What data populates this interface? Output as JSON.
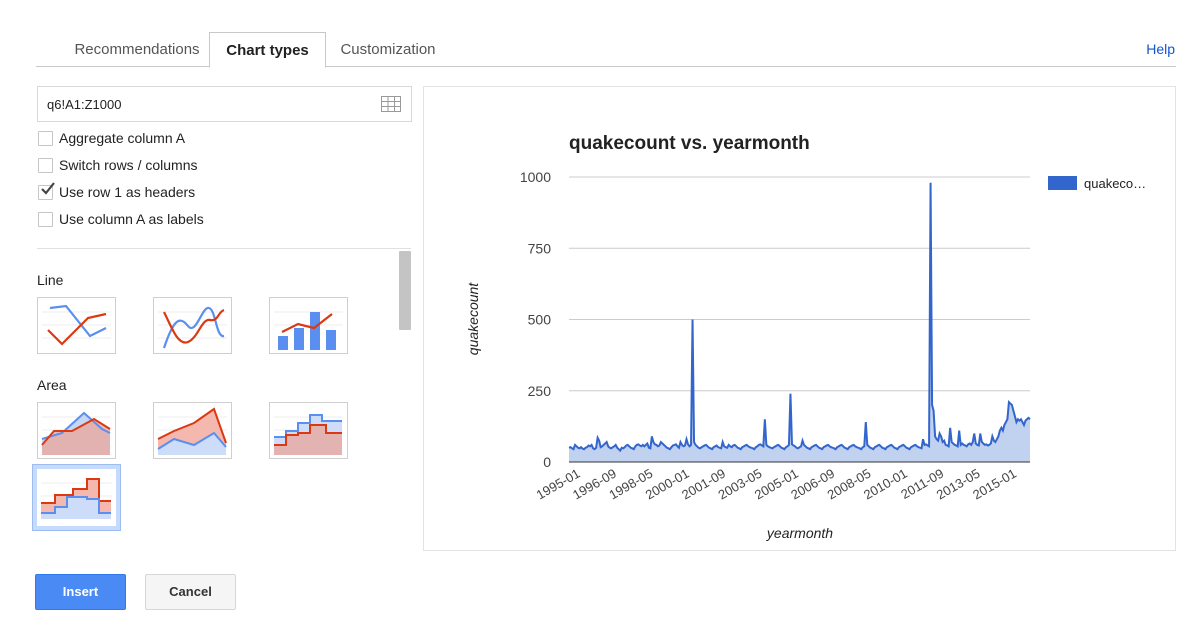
{
  "tabs": [
    {
      "label": "Recommendations",
      "active": false
    },
    {
      "label": "Chart types",
      "active": true
    },
    {
      "label": "Customization",
      "active": false
    }
  ],
  "help_label": "Help",
  "range_input": {
    "value": "q6!A1:Z1000",
    "icon": "grid-icon"
  },
  "options": [
    {
      "label": "Aggregate column A",
      "checked": false
    },
    {
      "label": "Switch rows / columns",
      "checked": false
    },
    {
      "label": "Use row 1 as headers",
      "checked": true
    },
    {
      "label": "Use column A as labels",
      "checked": false
    }
  ],
  "chart_types": {
    "line_label": "Line",
    "area_label": "Area",
    "line_thumbs": [
      "line-chart-icon",
      "smooth-line-chart-icon",
      "combo-chart-icon"
    ],
    "area_thumbs": [
      "area-chart-icon",
      "stacked-area-chart-icon",
      "stepped-area-chart-icon",
      "stepped-area-chart-selected-icon"
    ]
  },
  "buttons": {
    "insert": "Insert",
    "cancel": "Cancel"
  },
  "colors": {
    "accent": "#4a8af4",
    "series": "#3366cc",
    "red": "#dc3912",
    "link": "#1155cc"
  },
  "chart_data": {
    "type": "area",
    "title": "quakecount vs. yearmonth",
    "xlabel": "yearmonth",
    "ylabel": "quakecount",
    "ylim": [
      0,
      1000
    ],
    "yticks": [
      0,
      250,
      500,
      750,
      1000
    ],
    "xticks": [
      "1995-01",
      "1996-09",
      "1998-05",
      "2000-01",
      "2001-09",
      "2003-05",
      "2005-01",
      "2006-09",
      "2008-05",
      "2010-01",
      "2011-09",
      "2013-05",
      "2015-01"
    ],
    "legend": "quakeco…",
    "legend_position": "right",
    "grid": true,
    "series": [
      {
        "name": "quakecount",
        "x_start": "1995-01",
        "x_end": "2015-08",
        "values": [
          50,
          52,
          48,
          45,
          60,
          55,
          50,
          48,
          52,
          47,
          45,
          50,
          52,
          58,
          55,
          60,
          48,
          45,
          50,
          85,
          75,
          52,
          55,
          60,
          65,
          70,
          55,
          50,
          48,
          52,
          55,
          60,
          50,
          45,
          40,
          50,
          48,
          52,
          58,
          60,
          55,
          50,
          48,
          45,
          55,
          60,
          62,
          58,
          55,
          60,
          55,
          60,
          65,
          50,
          48,
          90,
          70,
          62,
          60,
          55,
          58,
          70,
          65,
          60,
          55,
          50,
          48,
          45,
          52,
          58,
          60,
          62,
          55,
          50,
          70,
          60,
          55,
          58,
          80,
          62,
          55,
          60,
          500,
          70,
          60,
          55,
          50,
          48,
          52,
          55,
          58,
          60,
          55,
          50,
          48,
          45,
          52,
          55,
          58,
          52,
          50,
          48,
          70,
          55,
          52,
          50,
          60,
          55,
          52,
          58,
          60,
          55,
          50,
          48,
          45,
          52,
          55,
          58,
          60,
          55,
          52,
          50,
          48,
          45,
          52,
          55,
          60,
          62,
          58,
          55,
          150,
          60,
          55,
          52,
          50,
          48,
          52,
          55,
          58,
          60,
          55,
          50,
          48,
          45,
          52,
          55,
          60,
          240,
          62,
          58,
          55,
          50,
          48,
          52,
          55,
          75,
          60,
          55,
          50,
          48,
          45,
          52,
          55,
          58,
          60,
          55,
          50,
          48,
          45,
          52,
          55,
          58,
          60,
          55,
          52,
          50,
          48,
          45,
          52,
          55,
          58,
          60,
          55,
          50,
          48,
          45,
          52,
          55,
          58,
          60,
          55,
          52,
          50,
          48,
          45,
          52,
          55,
          140,
          60,
          55,
          50,
          48,
          45,
          52,
          55,
          58,
          60,
          55,
          50,
          48,
          45,
          52,
          55,
          58,
          60,
          55,
          50,
          48,
          45,
          52,
          55,
          58,
          60,
          55,
          50,
          48,
          45,
          52,
          55,
          58,
          60,
          55,
          52,
          50,
          48,
          80,
          60,
          62,
          58,
          55,
          980,
          200,
          180,
          90,
          80,
          75,
          100,
          90,
          70,
          75,
          60,
          58,
          55,
          120,
          70,
          65,
          60,
          58,
          55,
          110,
          60,
          65,
          60,
          58,
          55,
          62,
          65,
          60,
          70,
          100,
          65,
          60,
          58,
          100,
          70,
          65,
          60,
          62,
          58,
          60,
          65,
          90,
          75,
          70,
          80,
          90,
          110,
          120,
          110,
          130,
          140,
          150,
          210,
          205,
          200,
          180,
          160,
          140,
          150,
          145,
          150,
          140,
          130,
          145,
          150,
          155,
          150
        ]
      }
    ]
  }
}
